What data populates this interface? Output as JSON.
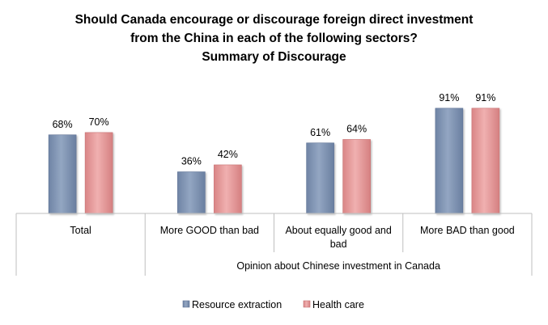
{
  "chart_data": {
    "type": "bar",
    "title": [
      "Should Canada encourage or discourage foreign direct investment",
      "from the China in each of the following sectors?",
      "Summary of Discourage"
    ],
    "groups": [
      {
        "lines": [
          "Total"
        ]
      },
      {
        "lines": [
          "More GOOD than bad"
        ]
      },
      {
        "lines": [
          "About equally good and",
          "bad"
        ]
      },
      {
        "lines": [
          "More BAD than good"
        ]
      }
    ],
    "group_header": "Opinion about Chinese investment in Canada",
    "series": [
      {
        "name": "Resource extraction",
        "color": "#8497b4",
        "values": [
          68,
          36,
          61,
          91
        ],
        "labels": [
          "68%",
          "36%",
          "61%",
          "91%"
        ]
      },
      {
        "name": "Health care",
        "color": "#e59a9b",
        "values": [
          70,
          42,
          64,
          91
        ],
        "labels": [
          "70%",
          "42%",
          "64%",
          "91%"
        ]
      }
    ],
    "ylim": [
      0,
      100
    ],
    "xlabel": "",
    "ylabel": "",
    "grid": false,
    "legend": "bottom"
  }
}
